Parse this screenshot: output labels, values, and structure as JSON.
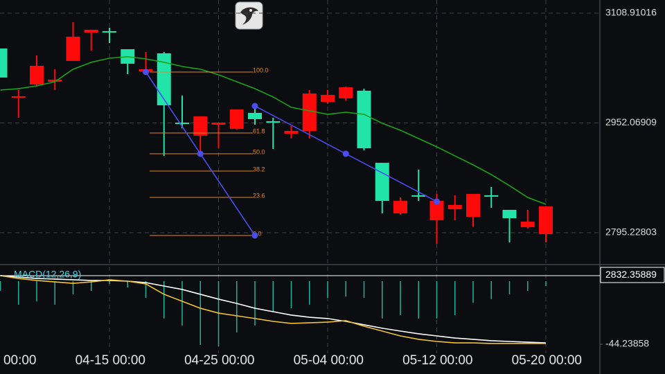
{
  "chart_data": {
    "type": "candlestick",
    "categories": [
      "00:00",
      null,
      null,
      null,
      null,
      null,
      "04-15 00:00",
      null,
      null,
      null,
      null,
      null,
      "04-25 00:00",
      null,
      null,
      null,
      null,
      null,
      "05-04 00:00",
      null,
      null,
      null,
      null,
      null,
      "05-12 00:00",
      null,
      null,
      null,
      null,
      null,
      "05-20 00:00"
    ],
    "ohlc": [
      [
        3016.9,
        3058.4,
        3016.9,
        3058.4
      ],
      [
        2990.2,
        2999.1,
        2959.5,
        2988.2
      ],
      [
        3033.7,
        3048.5,
        3004.0,
        3007.0
      ],
      [
        3013.9,
        3028.8,
        2999.1,
        3010.9
      ],
      [
        3075.3,
        3096.0,
        3040.6,
        3040.6
      ],
      [
        3085.2,
        3085.2,
        3055.5,
        3081.2
      ],
      [
        3081.2,
        3088.1,
        3066.3,
        3083.2
      ],
      [
        3036.7,
        3057.4,
        3021.8,
        3057.4
      ],
      [
        3028.8,
        3053.5,
        3020.8,
        3025.8
      ],
      [
        2977.3,
        3053.5,
        2905.0,
        3051.5
      ],
      [
        2951.6,
        2991.1,
        2944.6,
        2952.5
      ],
      [
        2961.4,
        2961.4,
        2904.0,
        2933.8
      ],
      [
        2952.5,
        2952.5,
        2915.9,
        2949.6
      ],
      [
        2971.3,
        2971.3,
        2942.7,
        2943.6
      ],
      [
        2957.5,
        2974.3,
        2949.6,
        2966.4
      ],
      [
        2952.5,
        2959.5,
        2914.9,
        2954.5
      ],
      [
        2940.7,
        2947.6,
        2929.8,
        2936.7
      ],
      [
        2994.1,
        2999.1,
        2929.8,
        2940.7
      ],
      [
        2992.1,
        2999.1,
        2979.3,
        2982.2
      ],
      [
        3003.0,
        3004.0,
        2984.2,
        2987.2
      ],
      [
        2915.9,
        3001.0,
        2912.9,
        2998.1
      ],
      [
        2840.7,
        2895.1,
        2822.9,
        2895.1
      ],
      [
        2840.7,
        2845.7,
        2820.9,
        2822.9
      ],
      [
        2846.7,
        2885.3,
        2840.7,
        2848.7
      ],
      [
        2840.7,
        2850.6,
        2779.4,
        2813.0
      ],
      [
        2834.8,
        2848.7,
        2813.0,
        2828.8
      ],
      [
        2850.6,
        2850.6,
        2804.1,
        2817.9
      ],
      [
        2846.7,
        2860.5,
        2830.8,
        2848.7
      ],
      [
        2816.0,
        2827.9,
        2781.4,
        2827.9
      ],
      [
        2811.0,
        2827.9,
        2801.1,
        2803.1
      ],
      [
        2832.8,
        2832.8,
        2781.4,
        2793.2
      ]
    ],
    "up_color": "#22e3a8",
    "down_color": "#ff0a0a",
    "ma_values": [
      2999.1,
      3001.0,
      3005.0,
      3010.9,
      3028.8,
      3038.7,
      3044.6,
      3046.6,
      3043.6,
      3038.7,
      3032.7,
      3028.8,
      3020.8,
      3010.9,
      3001.0,
      2989.2,
      2974.3,
      2969.4,
      2964.4,
      2967.4,
      2964.4,
      2951.6,
      2941.7,
      2929.8,
      2917.9,
      2905.0,
      2892.2,
      2878.3,
      2862.5,
      2845.7,
      2835.8
    ],
    "ma_color": "#19a319",
    "ylim": [
      2750.7,
      3127.71
    ],
    "yticks": [
      2795.22803,
      2952.06909,
      3108.91016
    ],
    "grid": true,
    "last_price": 2832.35889,
    "fibonacci": [
      {
        "label": "100.0",
        "value": 3024.8
      },
      {
        "label": "61.8",
        "value": 2937.7
      },
      {
        "label": "50.0",
        "value": 2908.0
      },
      {
        "label": "38.2",
        "value": 2883.3
      },
      {
        "label": "23.6",
        "value": 2845.7
      },
      {
        "label": "0.0",
        "value": 2791.3
      }
    ],
    "fib_color": "#e08a2c",
    "trend_lines": [
      {
        "x": [
          8,
          11,
          14
        ],
        "y": [
          3024.8,
          2908.0,
          2791.3
        ]
      },
      {
        "x": [
          14,
          19,
          24
        ],
        "y": [
          2976.3,
          2908.0,
          2839.8
        ]
      }
    ],
    "trend_color": "#4a4ef0",
    "macd": {
      "label": "MACD(12,26,9)",
      "ylim": [
        -50.56,
        11.18
      ],
      "yticks": [
        -44.23858
      ],
      "dif": [
        3.9,
        1.9,
        0.5,
        -0.5,
        -1.5,
        -0.5,
        1.0,
        0,
        -1.9,
        -9.2,
        -14.1,
        -19.0,
        -22.4,
        -24.3,
        -26.2,
        -28.2,
        -29.6,
        -29.2,
        -28.7,
        -27.7,
        -31.6,
        -35.0,
        -38.4,
        -40.8,
        -42.3,
        -43.3,
        -43.3,
        -43.7,
        -43.7,
        -43.7,
        -43.7
      ],
      "dea": [
        3.9,
        2.9,
        1.9,
        1.5,
        1.0,
        0.5,
        0.5,
        0,
        -1.0,
        -3.4,
        -5.8,
        -9.2,
        -12.6,
        -15.6,
        -19.0,
        -21.4,
        -23.8,
        -25.3,
        -26.2,
        -28.2,
        -30.6,
        -33.0,
        -35.0,
        -36.9,
        -38.4,
        -39.9,
        -40.8,
        -41.8,
        -42.3,
        -42.8,
        -43.3
      ],
      "histogram": [
        -6.8,
        -16.5,
        -14.1,
        -16.5,
        -9.2,
        -6.8,
        -1.9,
        -4.4,
        -11.7,
        -26.2,
        -31.1,
        -44.7,
        -45.7,
        -36.0,
        -31.1,
        -21.4,
        -19.0,
        -16.5,
        -11.7,
        -10.7,
        -11.7,
        -26.2,
        -23.8,
        -26.2,
        -26.2,
        -23.8,
        -15.1,
        -12.6,
        -9.2,
        -6.8,
        -3.4
      ],
      "dif_color": "#f2c230",
      "dea_color": "#ffffff",
      "histogram_color": "#1fb39a",
      "label_color": "#3fd6e6"
    }
  }
}
